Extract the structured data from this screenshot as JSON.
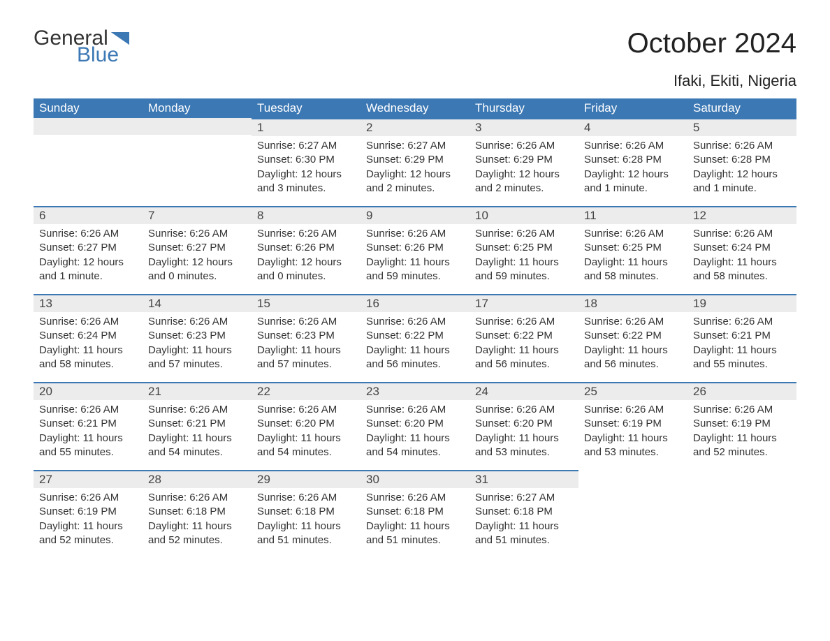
{
  "logo": {
    "word1": "General",
    "word2": "Blue",
    "brand_color": "#3c78b4"
  },
  "header": {
    "month_title": "October 2024",
    "location": "Ifaki, Ekiti, Nigeria"
  },
  "colors": {
    "th_bg": "#3c78b4",
    "th_text": "#ffffff",
    "band_bg": "#ececec",
    "band_border": "#3c78b4",
    "body_text": "#333333",
    "page_bg": "#ffffff"
  },
  "fonts": {
    "title_size_pt": 30,
    "location_size_pt": 17,
    "th_size_pt": 13,
    "cell_size_pt": 11
  },
  "calendar": {
    "type": "table",
    "columns": [
      "Sunday",
      "Monday",
      "Tuesday",
      "Wednesday",
      "Thursday",
      "Friday",
      "Saturday"
    ],
    "start_weekday_index": 2,
    "days": [
      {
        "n": 1,
        "sunrise": "6:27 AM",
        "sunset": "6:30 PM",
        "daylight": "12 hours and 3 minutes."
      },
      {
        "n": 2,
        "sunrise": "6:27 AM",
        "sunset": "6:29 PM",
        "daylight": "12 hours and 2 minutes."
      },
      {
        "n": 3,
        "sunrise": "6:26 AM",
        "sunset": "6:29 PM",
        "daylight": "12 hours and 2 minutes."
      },
      {
        "n": 4,
        "sunrise": "6:26 AM",
        "sunset": "6:28 PM",
        "daylight": "12 hours and 1 minute."
      },
      {
        "n": 5,
        "sunrise": "6:26 AM",
        "sunset": "6:28 PM",
        "daylight": "12 hours and 1 minute."
      },
      {
        "n": 6,
        "sunrise": "6:26 AM",
        "sunset": "6:27 PM",
        "daylight": "12 hours and 1 minute."
      },
      {
        "n": 7,
        "sunrise": "6:26 AM",
        "sunset": "6:27 PM",
        "daylight": "12 hours and 0 minutes."
      },
      {
        "n": 8,
        "sunrise": "6:26 AM",
        "sunset": "6:26 PM",
        "daylight": "12 hours and 0 minutes."
      },
      {
        "n": 9,
        "sunrise": "6:26 AM",
        "sunset": "6:26 PM",
        "daylight": "11 hours and 59 minutes."
      },
      {
        "n": 10,
        "sunrise": "6:26 AM",
        "sunset": "6:25 PM",
        "daylight": "11 hours and 59 minutes."
      },
      {
        "n": 11,
        "sunrise": "6:26 AM",
        "sunset": "6:25 PM",
        "daylight": "11 hours and 58 minutes."
      },
      {
        "n": 12,
        "sunrise": "6:26 AM",
        "sunset": "6:24 PM",
        "daylight": "11 hours and 58 minutes."
      },
      {
        "n": 13,
        "sunrise": "6:26 AM",
        "sunset": "6:24 PM",
        "daylight": "11 hours and 58 minutes."
      },
      {
        "n": 14,
        "sunrise": "6:26 AM",
        "sunset": "6:23 PM",
        "daylight": "11 hours and 57 minutes."
      },
      {
        "n": 15,
        "sunrise": "6:26 AM",
        "sunset": "6:23 PM",
        "daylight": "11 hours and 57 minutes."
      },
      {
        "n": 16,
        "sunrise": "6:26 AM",
        "sunset": "6:22 PM",
        "daylight": "11 hours and 56 minutes."
      },
      {
        "n": 17,
        "sunrise": "6:26 AM",
        "sunset": "6:22 PM",
        "daylight": "11 hours and 56 minutes."
      },
      {
        "n": 18,
        "sunrise": "6:26 AM",
        "sunset": "6:22 PM",
        "daylight": "11 hours and 56 minutes."
      },
      {
        "n": 19,
        "sunrise": "6:26 AM",
        "sunset": "6:21 PM",
        "daylight": "11 hours and 55 minutes."
      },
      {
        "n": 20,
        "sunrise": "6:26 AM",
        "sunset": "6:21 PM",
        "daylight": "11 hours and 55 minutes."
      },
      {
        "n": 21,
        "sunrise": "6:26 AM",
        "sunset": "6:21 PM",
        "daylight": "11 hours and 54 minutes."
      },
      {
        "n": 22,
        "sunrise": "6:26 AM",
        "sunset": "6:20 PM",
        "daylight": "11 hours and 54 minutes."
      },
      {
        "n": 23,
        "sunrise": "6:26 AM",
        "sunset": "6:20 PM",
        "daylight": "11 hours and 54 minutes."
      },
      {
        "n": 24,
        "sunrise": "6:26 AM",
        "sunset": "6:20 PM",
        "daylight": "11 hours and 53 minutes."
      },
      {
        "n": 25,
        "sunrise": "6:26 AM",
        "sunset": "6:19 PM",
        "daylight": "11 hours and 53 minutes."
      },
      {
        "n": 26,
        "sunrise": "6:26 AM",
        "sunset": "6:19 PM",
        "daylight": "11 hours and 52 minutes."
      },
      {
        "n": 27,
        "sunrise": "6:26 AM",
        "sunset": "6:19 PM",
        "daylight": "11 hours and 52 minutes."
      },
      {
        "n": 28,
        "sunrise": "6:26 AM",
        "sunset": "6:18 PM",
        "daylight": "11 hours and 52 minutes."
      },
      {
        "n": 29,
        "sunrise": "6:26 AM",
        "sunset": "6:18 PM",
        "daylight": "11 hours and 51 minutes."
      },
      {
        "n": 30,
        "sunrise": "6:26 AM",
        "sunset": "6:18 PM",
        "daylight": "11 hours and 51 minutes."
      },
      {
        "n": 31,
        "sunrise": "6:27 AM",
        "sunset": "6:18 PM",
        "daylight": "11 hours and 51 minutes."
      }
    ],
    "labels": {
      "sunrise": "Sunrise:",
      "sunset": "Sunset:",
      "daylight": "Daylight:"
    }
  }
}
